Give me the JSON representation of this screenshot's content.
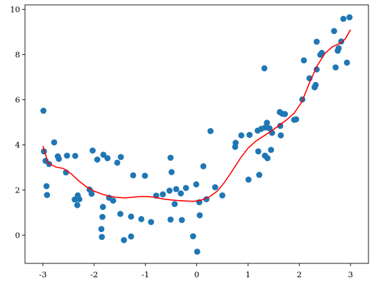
{
  "chart_data": {
    "type": "scatter",
    "title": "",
    "xlabel": "",
    "ylabel": "",
    "xlim": [
      -3.35,
      3.35
    ],
    "ylim": [
      -1.25,
      10.2
    ],
    "grid": false,
    "x_ticks": [
      -3,
      -2,
      -1,
      0,
      1,
      2,
      3
    ],
    "x_tick_labels": [
      "-3",
      "-2",
      "-1",
      "0",
      "1",
      "2",
      "3"
    ],
    "y_ticks": [
      0,
      2,
      4,
      6,
      8,
      10
    ],
    "y_tick_labels": [
      "0",
      "2",
      "4",
      "6",
      "8",
      "10"
    ],
    "colors": {
      "points": "#1f77b4",
      "fit_line": "#ff0000"
    },
    "series": [
      {
        "type": "scatter",
        "points": [
          [
            -2.99,
            5.51
          ],
          [
            -2.98,
            3.71
          ],
          [
            -2.95,
            3.29
          ],
          [
            -2.93,
            2.17
          ],
          [
            -2.92,
            1.78
          ],
          [
            -2.88,
            3.15
          ],
          [
            -2.78,
            4.11
          ],
          [
            -2.71,
            3.49
          ],
          [
            -2.69,
            3.38
          ],
          [
            -2.55,
            2.78
          ],
          [
            -2.53,
            3.52
          ],
          [
            -2.37,
            3.51
          ],
          [
            -2.38,
            1.58
          ],
          [
            -2.33,
            1.33
          ],
          [
            -2.32,
            1.76
          ],
          [
            -2.29,
            1.59
          ],
          [
            -2.09,
            2.02
          ],
          [
            -2.05,
            1.83
          ],
          [
            -2.03,
            3.75
          ],
          [
            -1.94,
            3.35
          ],
          [
            -1.86,
            0.27
          ],
          [
            -1.85,
            -0.08
          ],
          [
            -1.83,
            1.25
          ],
          [
            -1.84,
            0.81
          ],
          [
            -1.82,
            3.56
          ],
          [
            -1.74,
            3.41
          ],
          [
            -1.71,
            1.66
          ],
          [
            -1.63,
            1.53
          ],
          [
            -1.55,
            3.21
          ],
          [
            -1.49,
            0.94
          ],
          [
            -1.48,
            3.46
          ],
          [
            -1.42,
            -0.22
          ],
          [
            -1.28,
            -0.06
          ],
          [
            -1.28,
            0.82
          ],
          [
            -1.24,
            2.65
          ],
          [
            -1.08,
            0.71
          ],
          [
            -1.01,
            2.63
          ],
          [
            -0.89,
            0.58
          ],
          [
            -0.79,
            1.75
          ],
          [
            -0.66,
            1.81
          ],
          [
            -0.53,
            1.97
          ],
          [
            -0.51,
            3.43
          ],
          [
            -0.51,
            0.69
          ],
          [
            -0.49,
            2.79
          ],
          [
            -0.43,
            1.38
          ],
          [
            -0.4,
            2.04
          ],
          [
            -0.31,
            1.85
          ],
          [
            -0.29,
            0.67
          ],
          [
            -0.21,
            2.09
          ],
          [
            -0.07,
            -0.05
          ],
          [
            -0.01,
            2.25
          ],
          [
            0.01,
            -0.73
          ],
          [
            0.05,
            1.46
          ],
          [
            0.06,
            0.88
          ],
          [
            0.13,
            3.05
          ],
          [
            0.19,
            1.59
          ],
          [
            0.27,
            4.61
          ],
          [
            0.36,
            2.12
          ],
          [
            0.5,
            1.76
          ],
          [
            0.75,
            3.91
          ],
          [
            0.76,
            4.09
          ],
          [
            0.87,
            4.42
          ],
          [
            1.01,
            2.46
          ],
          [
            1.03,
            4.44
          ],
          [
            1.19,
            4.63
          ],
          [
            1.2,
            3.71
          ],
          [
            1.22,
            2.67
          ],
          [
            1.26,
            4.71
          ],
          [
            1.32,
            7.39
          ],
          [
            1.33,
            3.52
          ],
          [
            1.34,
            4.77
          ],
          [
            1.37,
            4.98
          ],
          [
            1.38,
            3.41
          ],
          [
            1.42,
            4.73
          ],
          [
            1.45,
            3.78
          ],
          [
            1.47,
            4.53
          ],
          [
            1.62,
            5.45
          ],
          [
            1.63,
            4.84
          ],
          [
            1.64,
            4.42
          ],
          [
            1.67,
            5.38
          ],
          [
            1.72,
            5.36
          ],
          [
            1.9,
            5.11
          ],
          [
            1.94,
            5.13
          ],
          [
            2.06,
            6.01
          ],
          [
            2.09,
            7.74
          ],
          [
            2.2,
            6.95
          ],
          [
            2.3,
            6.55
          ],
          [
            2.32,
            6.65
          ],
          [
            2.34,
            8.57
          ],
          [
            2.34,
            7.34
          ],
          [
            2.41,
            7.99
          ],
          [
            2.44,
            8.07
          ],
          [
            2.68,
            9.04
          ],
          [
            2.71,
            7.43
          ],
          [
            2.75,
            8.17
          ],
          [
            2.77,
            8.28
          ],
          [
            2.82,
            8.58
          ],
          [
            2.86,
            9.58
          ],
          [
            2.93,
            7.64
          ],
          [
            2.98,
            9.65
          ]
        ]
      },
      {
        "type": "line",
        "points": [
          [
            -3.0,
            3.95
          ],
          [
            -2.9,
            3.2
          ],
          [
            -2.75,
            3.02
          ],
          [
            -2.6,
            2.95
          ],
          [
            -2.45,
            2.72
          ],
          [
            -2.3,
            2.4
          ],
          [
            -2.15,
            2.14
          ],
          [
            -2.0,
            1.95
          ],
          [
            -1.85,
            1.82
          ],
          [
            -1.7,
            1.72
          ],
          [
            -1.55,
            1.67
          ],
          [
            -1.4,
            1.65
          ],
          [
            -1.25,
            1.68
          ],
          [
            -1.1,
            1.71
          ],
          [
            -0.95,
            1.71
          ],
          [
            -0.8,
            1.67
          ],
          [
            -0.65,
            1.6
          ],
          [
            -0.5,
            1.56
          ],
          [
            -0.35,
            1.53
          ],
          [
            -0.2,
            1.51
          ],
          [
            -0.05,
            1.5
          ],
          [
            0.1,
            1.56
          ],
          [
            0.25,
            1.7
          ],
          [
            0.4,
            1.95
          ],
          [
            0.55,
            2.36
          ],
          [
            0.7,
            2.87
          ],
          [
            0.85,
            3.4
          ],
          [
            1.0,
            3.85
          ],
          [
            1.15,
            4.16
          ],
          [
            1.3,
            4.38
          ],
          [
            1.45,
            4.6
          ],
          [
            1.6,
            4.85
          ],
          [
            1.75,
            5.1
          ],
          [
            1.9,
            5.4
          ],
          [
            2.05,
            5.9
          ],
          [
            2.2,
            6.75
          ],
          [
            2.35,
            7.5
          ],
          [
            2.5,
            8.05
          ],
          [
            2.65,
            8.35
          ],
          [
            2.8,
            8.5
          ],
          [
            2.9,
            8.7
          ],
          [
            3.0,
            9.1
          ]
        ]
      }
    ]
  }
}
